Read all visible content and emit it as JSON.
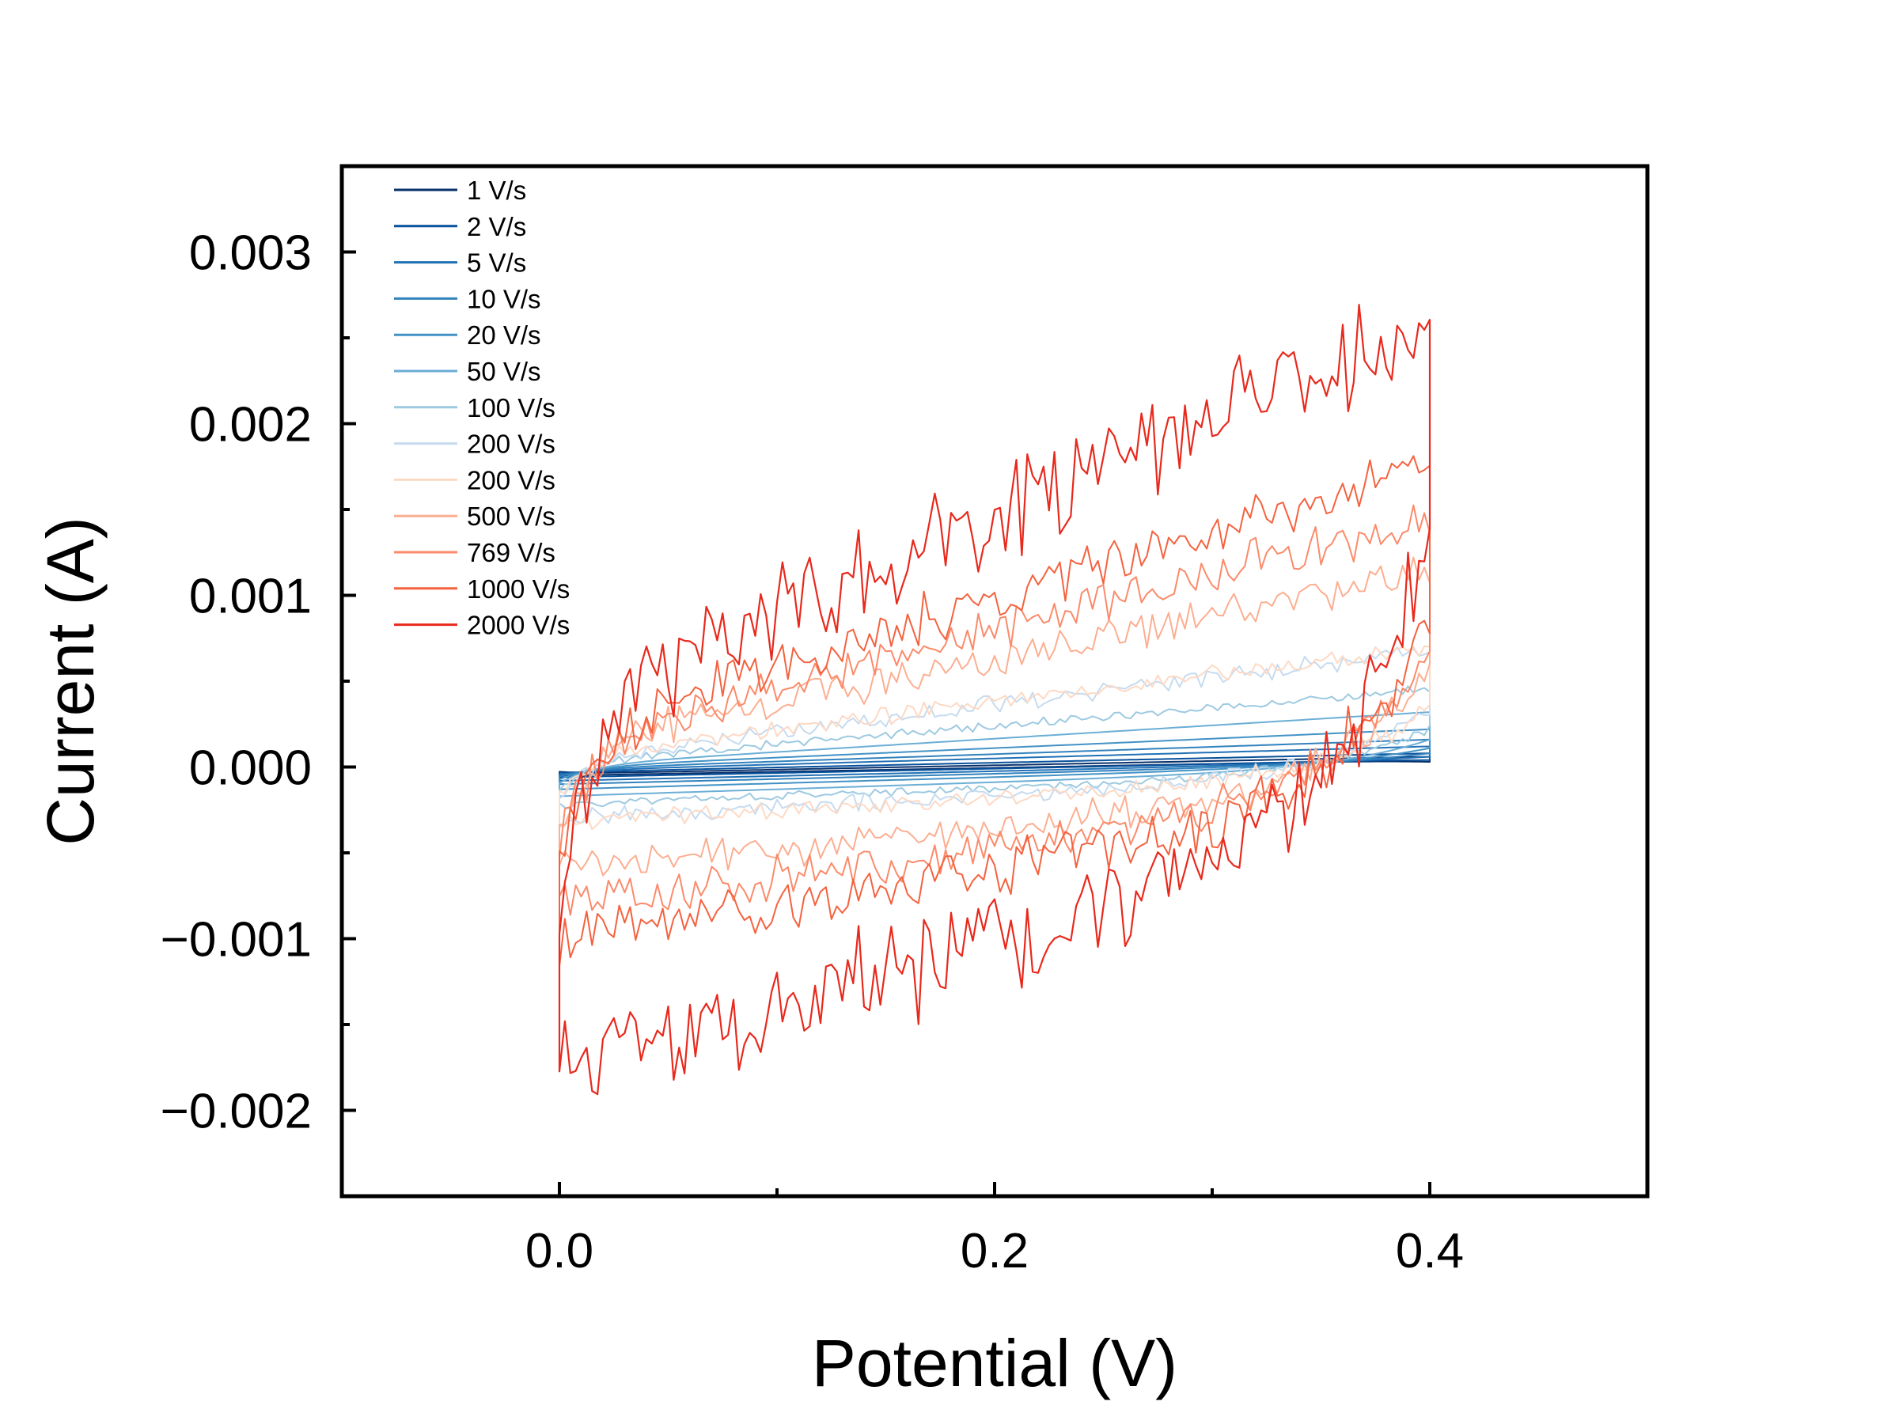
{
  "chart_data": {
    "type": "line",
    "title": "",
    "xlabel": "Potential (V)",
    "ylabel": "Current (A)",
    "xlim": [
      -0.1,
      0.5
    ],
    "ylim": [
      -0.0025,
      0.0035
    ],
    "xticks": [
      0.0,
      0.2,
      0.4
    ],
    "xtick_labels": [
      "0.0",
      "0.2",
      "0.4"
    ],
    "yticks": [
      -0.002,
      -0.001,
      0.0,
      0.001,
      0.002,
      0.003
    ],
    "ytick_labels": [
      "−0.002",
      "−0.001",
      "0.000",
      "0.001",
      "0.002",
      "0.003"
    ],
    "grid": false,
    "legend_position": "top-left",
    "x_range": [
      0.0,
      0.4
    ],
    "series": [
      {
        "name": "1 V/s",
        "color": "#08306b",
        "upper_start": -4e-05,
        "upper_end": 6e-05,
        "lower_start": -5e-05,
        "lower_end": 4e-05,
        "noise": 0.0
      },
      {
        "name": "2 V/s",
        "color": "#08519c",
        "upper_start": -3e-05,
        "upper_end": 8e-05,
        "lower_start": -6e-05,
        "lower_end": 4e-05,
        "noise": 0.0
      },
      {
        "name": "5 V/s",
        "color": "#2171b5",
        "upper_start": -2e-05,
        "upper_end": 0.00012,
        "lower_start": -8e-05,
        "lower_end": 3e-05,
        "noise": 0.0
      },
      {
        "name": "10 V/s",
        "color": "#3182bd",
        "upper_start": -1e-05,
        "upper_end": 0.00016,
        "lower_start": -0.0001,
        "lower_end": 2e-05,
        "noise": 0.0
      },
      {
        "name": "20 V/s",
        "color": "#4292c6",
        "upper_start": 0.0,
        "upper_end": 0.00022,
        "lower_start": -0.00013,
        "lower_end": 1e-05,
        "noise": 0.0
      },
      {
        "name": "50 V/s",
        "color": "#6baed6",
        "upper_start": 1e-05,
        "upper_end": 0.00032,
        "lower_start": -0.00017,
        "lower_end": -1e-05,
        "noise": 0.0
      },
      {
        "name": "100 V/s",
        "color": "#9ecae1",
        "upper_start": 3e-05,
        "upper_end": 0.00045,
        "lower_start": -0.00022,
        "lower_end": -3e-05,
        "noise": 2e-05
      },
      {
        "name": "200 V/s",
        "color": "#c6dbef",
        "upper_start": 5e-05,
        "upper_end": 0.00068,
        "lower_start": -0.0003,
        "lower_end": -5e-05,
        "noise": 4e-05
      },
      {
        "name": "200 V/s",
        "color": "#fdd9c4",
        "upper_start": 6e-05,
        "upper_end": 0.0007,
        "lower_start": -0.00032,
        "lower_end": -6e-05,
        "noise": 4e-05
      },
      {
        "name": "500 V/s",
        "color": "#fcae91",
        "upper_start": 0.00012,
        "upper_end": 0.00115,
        "lower_start": -0.0006,
        "lower_end": -0.00012,
        "noise": 8e-05
      },
      {
        "name": "769 V/s",
        "color": "#fb8a6a",
        "upper_start": 0.00016,
        "upper_end": 0.00145,
        "lower_start": -0.0008,
        "lower_end": -0.00018,
        "noise": 0.0001
      },
      {
        "name": "1000 V/s",
        "color": "#f4623f",
        "upper_start": 0.0002,
        "upper_end": 0.00175,
        "lower_start": -0.001,
        "lower_end": -0.00022,
        "noise": 0.00012
      },
      {
        "name": "2000 V/s",
        "color": "#e8291c",
        "upper_start": 0.00035,
        "upper_end": 0.0026,
        "lower_start": -0.00172,
        "lower_end": -0.0004,
        "noise": 0.00022
      }
    ]
  }
}
